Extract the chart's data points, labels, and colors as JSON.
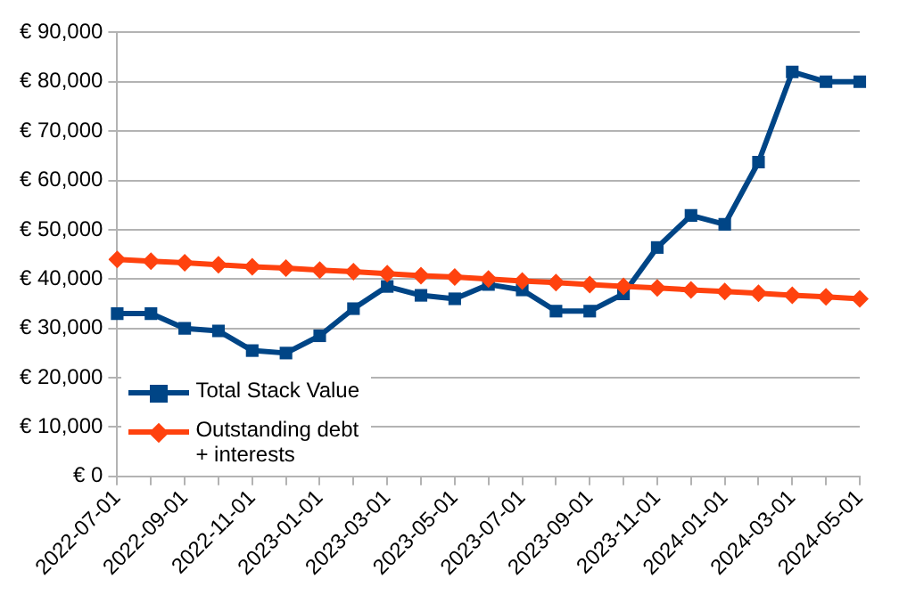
{
  "chart_data": {
    "type": "line",
    "categories": [
      "2022-07-01",
      null,
      "2022-09-01",
      null,
      "2022-11-01",
      null,
      "2023-01-01",
      null,
      "2023-03-01",
      null,
      "2023-05-01",
      null,
      "2023-07-01",
      null,
      "2023-09-01",
      null,
      "2023-11-01",
      null,
      "2024-01-01",
      null,
      "2024-03-01",
      null,
      "2024-05-01"
    ],
    "series": [
      {
        "name": "Total Stack Value",
        "color": "#004586",
        "marker": "square",
        "values": [
          33000,
          33000,
          30000,
          29500,
          25500,
          25000,
          28500,
          34000,
          38500,
          36700,
          36000,
          38900,
          37800,
          33500,
          33500,
          37000,
          46400,
          52900,
          51100,
          63700,
          82000,
          80000,
          80000
        ]
      },
      {
        "name": "Outstanding debt + interests",
        "color": "#ff420e",
        "marker": "diamond",
        "values": [
          44000,
          43600,
          43300,
          42900,
          42500,
          42200,
          41800,
          41500,
          41100,
          40700,
          40400,
          40000,
          39600,
          39300,
          38900,
          38500,
          38200,
          37800,
          37500,
          37100,
          36700,
          36400,
          36000
        ]
      }
    ],
    "ylim": [
      0,
      90000
    ],
    "yticks": [
      {
        "value": 0,
        "label": "€ 0"
      },
      {
        "value": 10000,
        "label": "€ 10,000"
      },
      {
        "value": 20000,
        "label": "€ 20,000"
      },
      {
        "value": 30000,
        "label": "€ 30,000"
      },
      {
        "value": 40000,
        "label": "€ 40,000"
      },
      {
        "value": 50000,
        "label": "€ 50,000"
      },
      {
        "value": 60000,
        "label": "€ 60,000"
      },
      {
        "value": 70000,
        "label": "€ 70,000"
      },
      {
        "value": 80000,
        "label": "€ 80,000"
      },
      {
        "value": 90000,
        "label": "€ 90,000"
      }
    ],
    "grid": "y",
    "legend": "bottom left",
    "line_style": "solid"
  }
}
